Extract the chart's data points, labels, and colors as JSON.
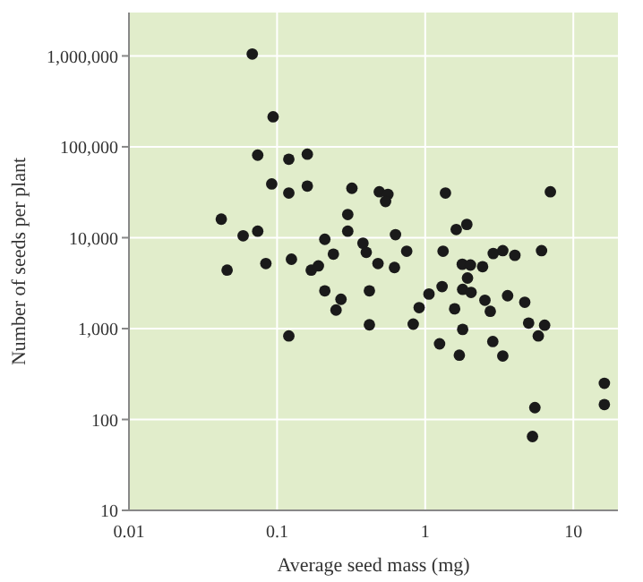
{
  "chart_data": {
    "type": "scatter",
    "xlabel": "Average seed mass (mg)",
    "ylabel": "Number of seeds per plant",
    "log": "xy",
    "grid": true,
    "marker": "circle",
    "legend": false,
    "xlim": [
      0.01,
      20
    ],
    "ylim": [
      10,
      3000000
    ],
    "xticks": [
      0.01,
      0.1,
      1,
      10
    ],
    "yticks": [
      10,
      100,
      {
        "value": 1000,
        "label": "1,000"
      },
      {
        "value": 10000,
        "label": "10,000"
      },
      {
        "value": 100000,
        "label": "100,000"
      },
      {
        "value": 1000000,
        "label": "1,000,000"
      }
    ],
    "series": [
      {
        "color": "#1a1a1a",
        "x": [
          0.068,
          0.094,
          0.074,
          0.12,
          0.16,
          0.092,
          0.12,
          0.16,
          0.042,
          0.059,
          0.074,
          0.046,
          0.084,
          0.125,
          0.17,
          0.19,
          0.21,
          0.24,
          0.21,
          0.25,
          0.27,
          0.12,
          0.3,
          0.3,
          0.32,
          0.38,
          0.4,
          0.48,
          0.42,
          0.42,
          0.49,
          0.56,
          0.54,
          0.63,
          0.62,
          0.75,
          0.83,
          0.91,
          1.06,
          1.25,
          1.3,
          1.32,
          1.37,
          1.58,
          1.62,
          1.91,
          1.78,
          2.02,
          1.93,
          1.79,
          2.04,
          1.79,
          1.7,
          2.44,
          2.53,
          2.75,
          2.88,
          3.34,
          3.6,
          2.86,
          3.34,
          4.03,
          4.7,
          4.99,
          5.8,
          6.4,
          6.1,
          7.0,
          5.5,
          5.3,
          16.2,
          16.2
        ],
        "values": [
          1050000,
          214000,
          81000,
          73000,
          83000,
          39000,
          31000,
          37000,
          16000,
          10500,
          11800,
          4400,
          5200,
          5800,
          4400,
          4900,
          9600,
          6600,
          2600,
          1600,
          2100,
          830,
          18000,
          11800,
          35000,
          8700,
          6900,
          5200,
          2600,
          1100,
          32000,
          30000,
          25000,
          10800,
          4700,
          7100,
          1120,
          1700,
          2400,
          680,
          2900,
          7100,
          31000,
          1650,
          12300,
          14000,
          5100,
          5000,
          3600,
          2700,
          2500,
          980,
          510,
          4800,
          2050,
          1550,
          6700,
          7200,
          2300,
          720,
          500,
          6400,
          1950,
          1150,
          830,
          1090,
          7200,
          32000,
          135,
          65,
          250,
          146
        ]
      }
    ]
  }
}
